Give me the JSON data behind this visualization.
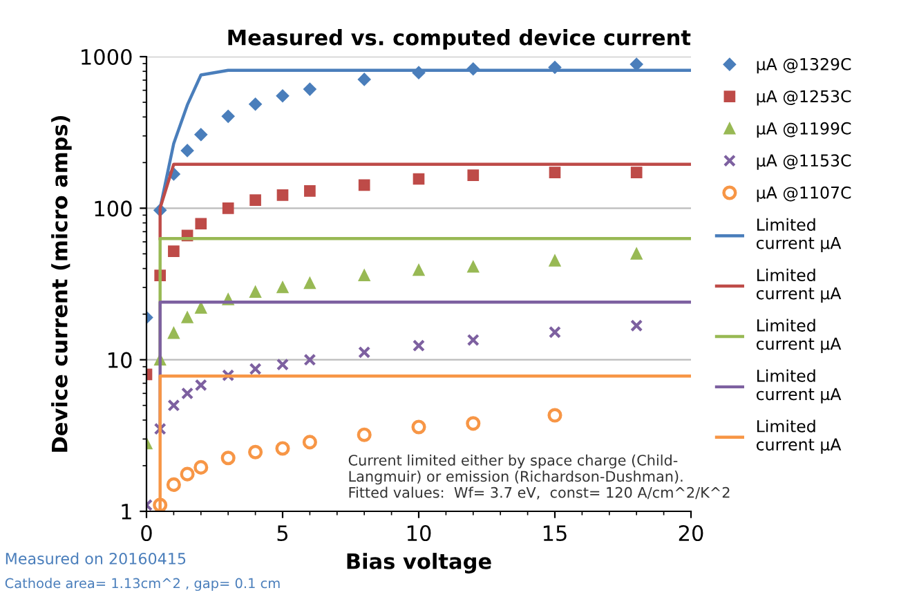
{
  "chart_data": {
    "type": "scatter",
    "title": "Measured vs. computed device current",
    "xlabel": "Bias voltage",
    "ylabel": "Device current (micro amps)",
    "log": "y",
    "xlim": [
      0,
      20
    ],
    "xticks": [
      0,
      5,
      10,
      15,
      20
    ],
    "ylim": [
      1,
      1000
    ],
    "yticks": [
      1,
      10,
      100,
      1000
    ],
    "grid": "y",
    "legend": "right",
    "series": [
      {
        "name": "µA @1329C",
        "marker": "diamond",
        "color": "#4a7ebb",
        "x": [
          0,
          0.5,
          1,
          1.5,
          2,
          3,
          4,
          5,
          6,
          8,
          10,
          12,
          15,
          18
        ],
        "values": [
          19,
          97,
          168,
          240,
          306,
          404,
          486,
          551,
          610,
          708,
          784,
          830,
          850,
          890
        ]
      },
      {
        "name": "µA @1253C",
        "marker": "square",
        "color": "#be4b48",
        "x": [
          0,
          0.5,
          1,
          1.5,
          2,
          3,
          4,
          5,
          6,
          8,
          10,
          12,
          15,
          18
        ],
        "values": [
          8,
          36,
          52,
          66,
          79,
          100,
          113,
          122,
          130,
          142,
          156,
          165,
          172,
          172
        ]
      },
      {
        "name": "µA @1199C",
        "marker": "triangle",
        "color": "#98b954",
        "x": [
          0,
          0.5,
          1,
          1.5,
          2,
          3,
          4,
          5,
          6,
          8,
          10,
          12,
          15,
          18
        ],
        "values": [
          2.8,
          10,
          15,
          19,
          22,
          25,
          28,
          30,
          32,
          36,
          39,
          41,
          45,
          50
        ]
      },
      {
        "name": "µA @1153C",
        "marker": "cross",
        "color": "#7d60a0",
        "x": [
          0,
          0.5,
          1,
          1.5,
          2,
          3,
          4,
          5,
          6,
          8,
          10,
          12,
          15,
          18
        ],
        "values": [
          1.1,
          3.5,
          5,
          6,
          6.8,
          7.9,
          8.7,
          9.3,
          10,
          11.2,
          12.4,
          13.5,
          15.2,
          16.8
        ]
      },
      {
        "name": "µA @1107C",
        "marker": "circle",
        "color": "#f79646",
        "x": [
          0.5,
          1,
          1.5,
          2,
          3,
          4,
          5,
          6,
          8,
          10,
          12,
          15
        ],
        "values": [
          1.1,
          1.5,
          1.76,
          1.95,
          2.25,
          2.46,
          2.6,
          2.86,
          3.2,
          3.6,
          3.8,
          4.3
        ]
      },
      {
        "name": "Limited current µA",
        "type": "line",
        "marker": "none",
        "color": "#4a7ebb",
        "x": [
          0.5,
          1,
          1.5,
          2,
          3,
          20
        ],
        "values": [
          100,
          267,
          480,
          757,
          813,
          813
        ]
      },
      {
        "name": "Limited current µA",
        "type": "line",
        "marker": "none",
        "color": "#be4b48",
        "x": [
          0.5,
          0.5,
          1,
          20
        ],
        "values": [
          63,
          100,
          195,
          195
        ]
      },
      {
        "name": "Limited current µA",
        "type": "line",
        "marker": "none",
        "color": "#98b954",
        "x": [
          0.5,
          0.5,
          20
        ],
        "values": [
          10,
          63,
          63
        ]
      },
      {
        "name": "Limited current µA",
        "type": "line",
        "marker": "none",
        "color": "#7d60a0",
        "x": [
          0.5,
          0.5,
          20
        ],
        "values": [
          3.5,
          24,
          24
        ]
      },
      {
        "name": "Limited current µA",
        "type": "line",
        "marker": "none",
        "color": "#f79646",
        "x": [
          0.5,
          0.5,
          20
        ],
        "values": [
          1,
          7.8,
          7.8
        ]
      }
    ],
    "annotations": [
      "Current limited either by space charge (Child-\nLangmuir) or emission (Richardson-Dushman).\nFitted values:  Wf= 3.7 eV,  const= 120 A/cm^2/K^2",
      "Measured on 20160415",
      "Cathode area= 1.13cm^2 , gap= 0.1 cm"
    ]
  }
}
